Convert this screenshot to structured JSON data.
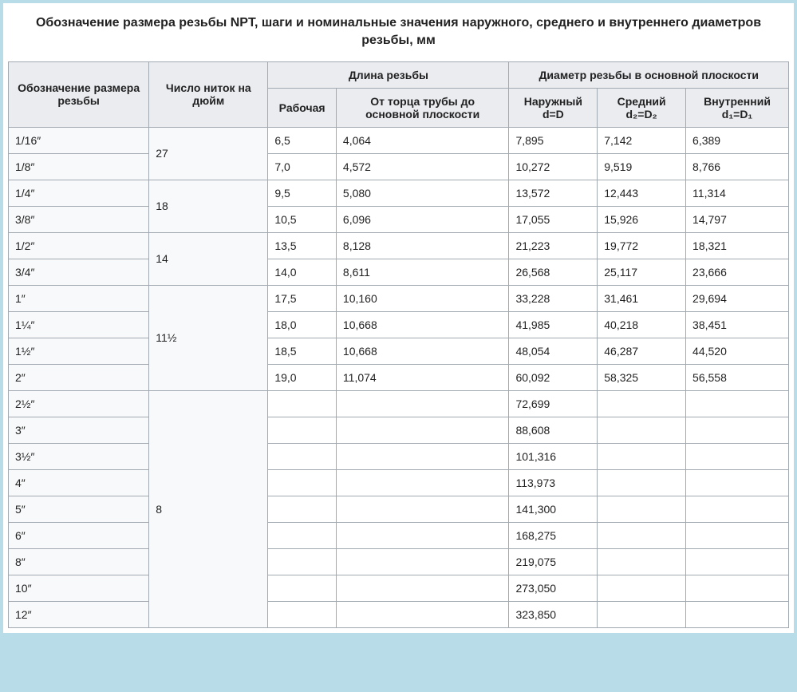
{
  "title": "Обозначение размера резьбы NPT, шаги и номинальные значения наружного, среднего и внутреннего диаметров резьбы, мм",
  "headers": {
    "size": "Обозначение размера резьбы",
    "tpi": "Число ниток на дюйм",
    "length_group": "Длина резьбы",
    "working": "Рабочая",
    "from_face": "От торца трубы до основной плоскости",
    "diam_group": "Диаметр резьбы в основной плоскости",
    "outer_html": "Наружный d=D",
    "mid_html": "Средний d₂=D₂",
    "inner_html": "Внутренний d₁=D₁"
  },
  "rows": [
    {
      "size": "1/16″",
      "tpi": "27",
      "tpi_rowspan": 2,
      "work": "6,5",
      "face": "4,064",
      "d": "7,895",
      "d2": "7,142",
      "d1": "6,389"
    },
    {
      "size": "1/8″",
      "work": "7,0",
      "face": "4,572",
      "d": "10,272",
      "d2": "9,519",
      "d1": "8,766"
    },
    {
      "size": "1/4″",
      "tpi": "18",
      "tpi_rowspan": 2,
      "work": "9,5",
      "face": "5,080",
      "d": "13,572",
      "d2": "12,443",
      "d1": "11,314"
    },
    {
      "size": "3/8″",
      "work": "10,5",
      "face": "6,096",
      "d": "17,055",
      "d2": "15,926",
      "d1": "14,797"
    },
    {
      "size": "1/2″",
      "tpi": "14",
      "tpi_rowspan": 2,
      "work": "13,5",
      "face": "8,128",
      "d": "21,223",
      "d2": "19,772",
      "d1": "18,321"
    },
    {
      "size": "3/4″",
      "work": "14,0",
      "face": "8,611",
      "d": "26,568",
      "d2": "25,117",
      "d1": "23,666"
    },
    {
      "size": "1″",
      "tpi": "11½",
      "tpi_rowspan": 4,
      "work": "17,5",
      "face": "10,160",
      "d": "33,228",
      "d2": "31,461",
      "d1": "29,694"
    },
    {
      "size": "1¼″",
      "work": "18,0",
      "face": "10,668",
      "d": "41,985",
      "d2": "40,218",
      "d1": "38,451"
    },
    {
      "size": "1½″",
      "work": "18,5",
      "face": "10,668",
      "d": "48,054",
      "d2": "46,287",
      "d1": "44,520"
    },
    {
      "size": "2″",
      "work": "19,0",
      "face": "11,074",
      "d": "60,092",
      "d2": "58,325",
      "d1": "56,558"
    },
    {
      "size": "2½″",
      "tpi": "8",
      "tpi_rowspan": 9,
      "work": "",
      "face": "",
      "d": "72,699",
      "d2": "",
      "d1": ""
    },
    {
      "size": "3″",
      "work": "",
      "face": "",
      "d": "88,608",
      "d2": "",
      "d1": ""
    },
    {
      "size": "3½″",
      "work": "",
      "face": "",
      "d": "101,316",
      "d2": "",
      "d1": ""
    },
    {
      "size": "4″",
      "work": "",
      "face": "",
      "d": "113,973",
      "d2": "",
      "d1": ""
    },
    {
      "size": "5″",
      "work": "",
      "face": "",
      "d": "141,300",
      "d2": "",
      "d1": ""
    },
    {
      "size": "6″",
      "work": "",
      "face": "",
      "d": "168,275",
      "d2": "",
      "d1": ""
    },
    {
      "size": "8″",
      "work": "",
      "face": "",
      "d": "219,075",
      "d2": "",
      "d1": ""
    },
    {
      "size": "10″",
      "work": "",
      "face": "",
      "d": "273,050",
      "d2": "",
      "d1": ""
    },
    {
      "size": "12″",
      "work": "",
      "face": "",
      "d": "323,850",
      "d2": "",
      "d1": ""
    }
  ]
}
